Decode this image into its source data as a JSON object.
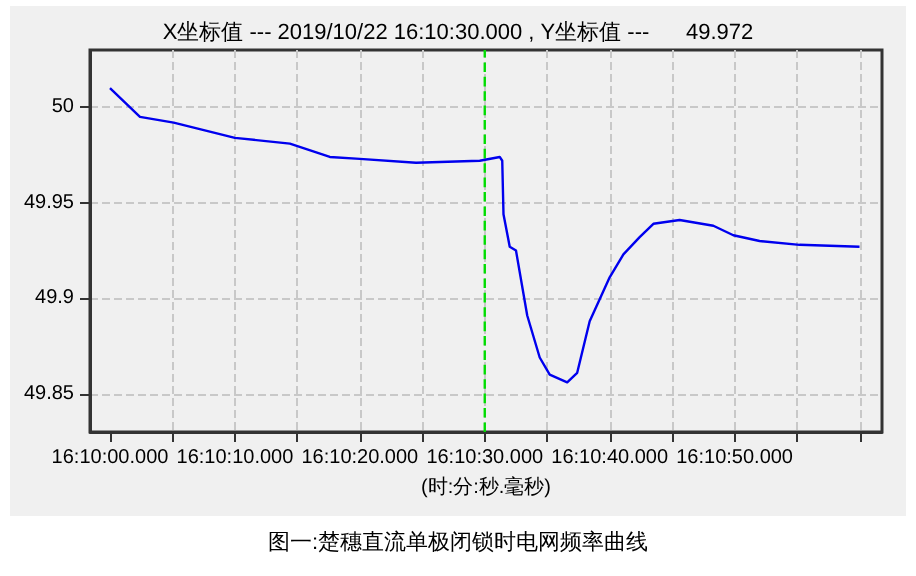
{
  "chart_data": {
    "type": "line",
    "title": "X坐标值 --- 2019/10/22 16:10:30.000 , Y坐标值 ---      49.972",
    "xlabel": "(时:分:秒.毫秒)",
    "annotations": [
      "图一:楚穗直流单极闭锁时电网频率曲线"
    ],
    "x": [
      "2019-10-22T16:10:00.000",
      "2019-10-22T16:10:02.400",
      "2019-10-22T16:10:05.100",
      "2019-10-22T16:10:10.000",
      "2019-10-22T16:10:14.400",
      "2019-10-22T16:10:17.600",
      "2019-10-22T16:10:20.000",
      "2019-10-22T16:10:24.500",
      "2019-10-22T16:10:29.600",
      "2019-10-22T16:10:31.200",
      "2019-10-22T16:10:31.400",
      "2019-10-22T16:10:31.500",
      "2019-10-22T16:10:32.000",
      "2019-10-22T16:10:32.500",
      "2019-10-22T16:10:33.400",
      "2019-10-22T16:10:34.400",
      "2019-10-22T16:10:35.200",
      "2019-10-22T16:10:36.600",
      "2019-10-22T16:10:37.400",
      "2019-10-22T16:10:38.400",
      "2019-10-22T16:10:40.000",
      "2019-10-22T16:10:41.100",
      "2019-10-22T16:10:42.400",
      "2019-10-22T16:10:43.500",
      "2019-10-22T16:10:45.600",
      "2019-10-22T16:10:48.300",
      "2019-10-22T16:10:49.900",
      "2019-10-22T16:10:52.000",
      "2019-10-22T16:10:55.200",
      "2019-10-22T16:11:00.000"
    ],
    "series": [
      {
        "color": "#0000ee",
        "values": [
          50.01,
          49.995,
          49.992,
          49.984,
          49.981,
          49.974,
          49.973,
          49.971,
          49.972,
          49.974,
          49.972,
          49.944,
          49.927,
          49.925,
          49.891,
          49.869,
          49.86,
          49.856,
          49.861,
          49.888,
          49.911,
          49.923,
          49.932,
          49.939,
          49.941,
          49.938,
          49.933,
          49.93,
          49.928,
          49.927
        ]
      }
    ],
    "xlim": [
      "2019-10-22T16:09:58.400",
      "2019-10-22T16:11:01.800"
    ],
    "xticks": [
      {
        "value": "2019-10-22T16:10:00.000",
        "label": "16:10:00.000"
      },
      {
        "value": "2019-10-22T16:10:05.000",
        "label": null
      },
      {
        "value": "2019-10-22T16:10:10.000",
        "label": "16:10:10.000"
      },
      {
        "value": "2019-10-22T16:10:15.000",
        "label": null
      },
      {
        "value": "2019-10-22T16:10:20.000",
        "label": "16:10:20.000"
      },
      {
        "value": "2019-10-22T16:10:25.000",
        "label": null
      },
      {
        "value": "2019-10-22T16:10:30.000",
        "label": "16:10:30.000"
      },
      {
        "value": "2019-10-22T16:10:35.000",
        "label": null
      },
      {
        "value": "2019-10-22T16:10:40.000",
        "label": "16:10:40.000"
      },
      {
        "value": "2019-10-22T16:10:45.000",
        "label": null
      },
      {
        "value": "2019-10-22T16:10:50.000",
        "label": "16:10:50.000"
      },
      {
        "value": "2019-10-22T16:10:55.000",
        "label": null
      },
      {
        "value": "2019-10-22T16:11:00.000",
        "label": null
      }
    ],
    "ylim": [
      49.83,
      50.03
    ],
    "yticks": [
      49.85,
      49.9,
      49.95,
      50
    ],
    "ref_lines": [
      {
        "axis": "x",
        "value": "2019-10-22T16:10:30.000",
        "color": "#00dd00",
        "line_style": "dashed"
      }
    ],
    "grid": true,
    "marker": "none",
    "line_style": "solid"
  }
}
